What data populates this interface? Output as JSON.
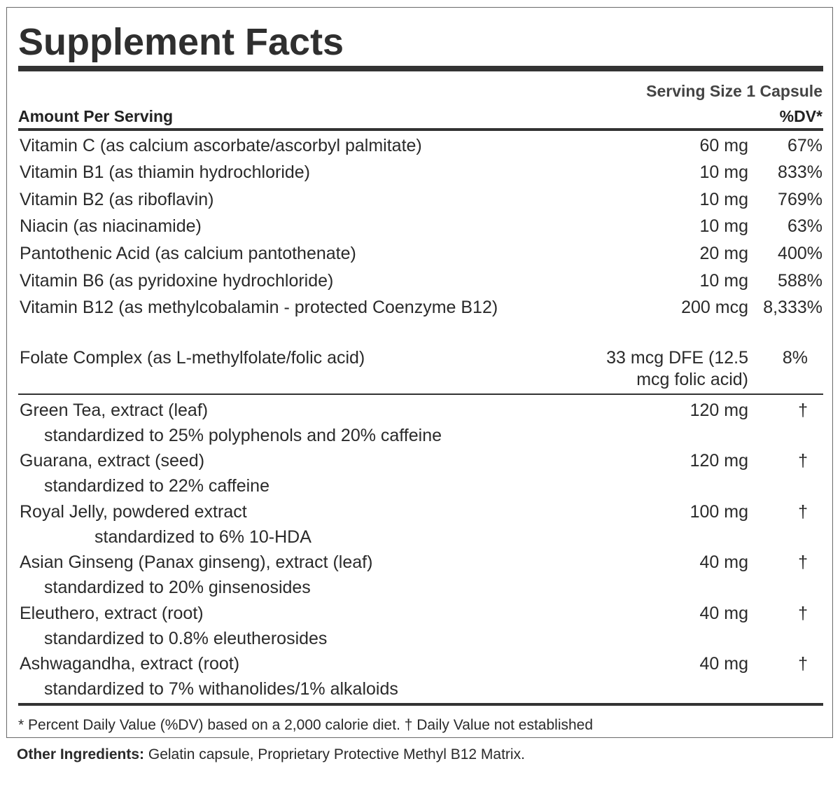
{
  "title": "Supplement Facts",
  "serving_size": "Serving Size 1 Capsule",
  "amount_per_serving": "Amount Per Serving",
  "dv_header": "%DV*",
  "vitamins": [
    {
      "name": "Vitamin C (as calcium ascorbate/ascorbyl palmitate)",
      "amount": "60 mg",
      "dv": "67%"
    },
    {
      "name": "Vitamin B1 (as thiamin hydrochloride)",
      "amount": "10 mg",
      "dv": "833%"
    },
    {
      "name": "Vitamin B2 (as riboflavin)",
      "amount": "10 mg",
      "dv": "769%"
    },
    {
      "name": "Niacin (as niacinamide)",
      "amount": "10 mg",
      "dv": "63%"
    },
    {
      "name": "Pantothenic Acid (as calcium pantothenate)",
      "amount": "20 mg",
      "dv": "400%"
    },
    {
      "name": "Vitamin B6 (as pyridoxine hydrochloride)",
      "amount": "10 mg",
      "dv": "588%"
    },
    {
      "name": "Vitamin B12 (as methylcobalamin - protected Coenzyme B12)",
      "amount": "200 mcg",
      "dv": "8,333%"
    },
    {
      "name": "Folate Complex (as L-methylfolate/folic acid)",
      "amount": "33 mcg DFE (12.5 mcg folic acid)",
      "dv": "8%"
    }
  ],
  "botanicals": [
    {
      "name": "Green Tea, extract (leaf)",
      "standard": "standardized to 25% polyphenols and 20% caffeine",
      "amount": "120 mg",
      "dv": "†"
    },
    {
      "name": "Guarana, extract (seed)",
      "standard": "standardized to 22% caffeine",
      "amount": "120 mg",
      "dv": "†"
    },
    {
      "name": "Royal Jelly, powdered extract",
      "standard": "standardized to 6% 10-HDA",
      "amount": "100 mg",
      "dv": "†"
    },
    {
      "name": "Asian Ginseng (Panax ginseng), extract (leaf)",
      "standard": "standardized to 20% ginsenosides",
      "amount": "40 mg",
      "dv": "†"
    },
    {
      "name": "Eleuthero, extract (root)",
      "standard": "standardized to 0.8% eleutherosides",
      "amount": "40 mg",
      "dv": "†"
    },
    {
      "name": "Ashwagandha, extract (root)",
      "standard": "standardized to 7% withanolides/1% alkaloids",
      "amount": "40 mg",
      "dv": "†"
    }
  ],
  "footnote": "* Percent Daily Value (%DV) based on a 2,000 calorie diet. † Daily Value not established",
  "other_ingredients": {
    "label": "Other Ingredients:",
    "text": " Gelatin capsule, Proprietary Protective Methyl B12 Matrix."
  }
}
